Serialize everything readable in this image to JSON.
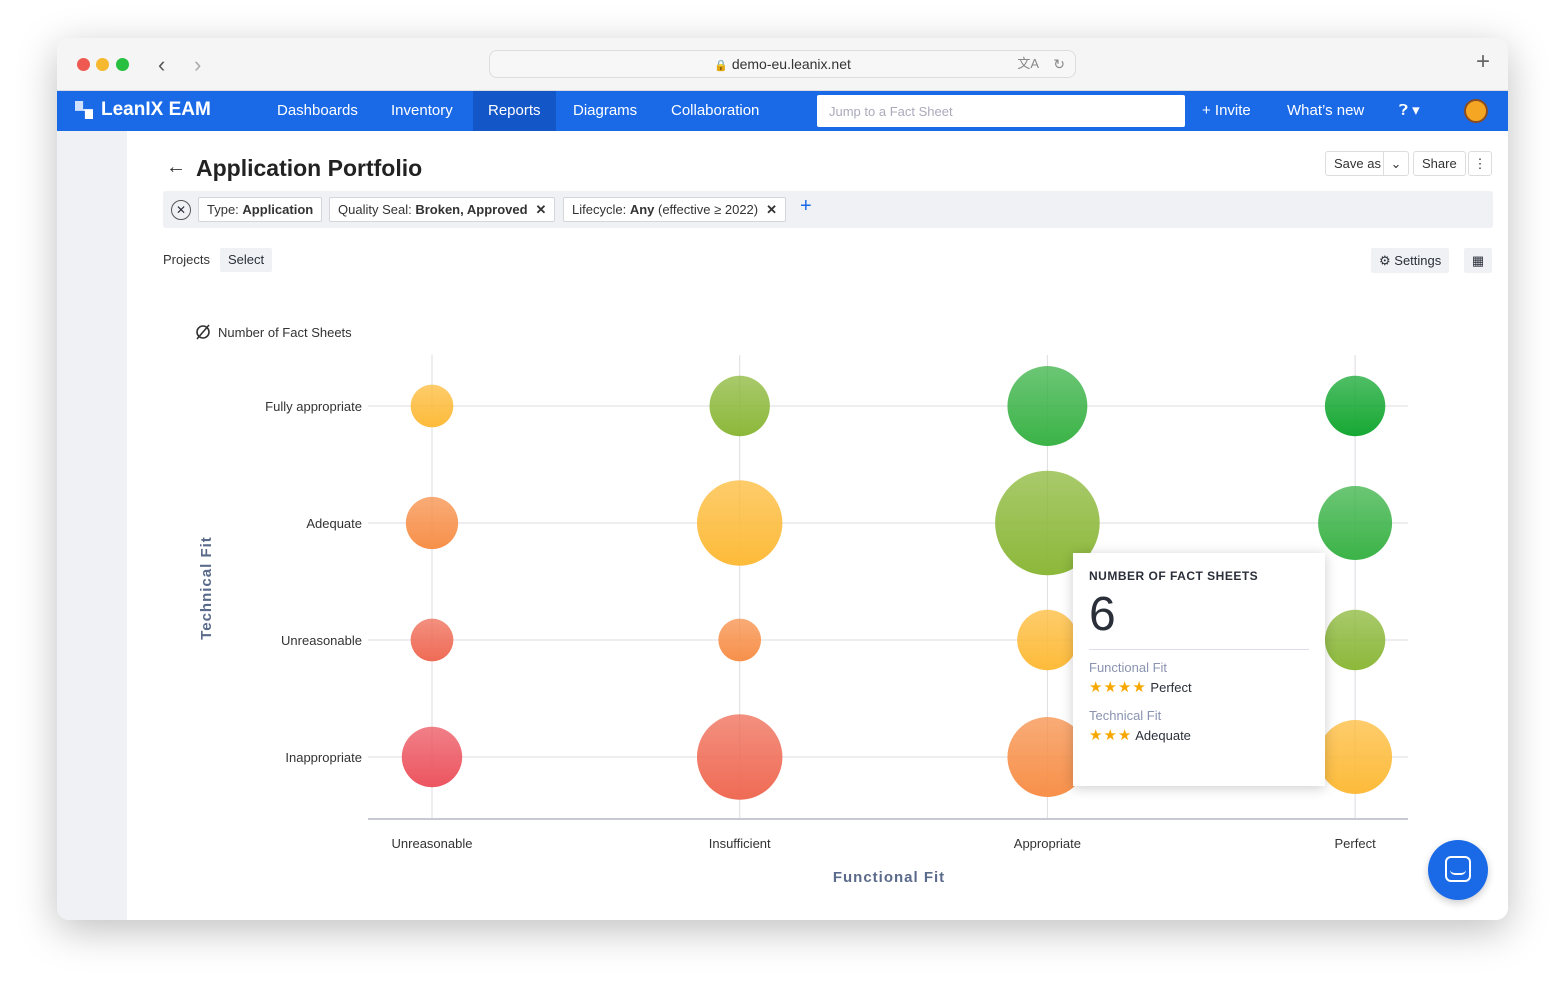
{
  "browser": {
    "url": "demo-eu.leanix.net"
  },
  "nav": {
    "brand": "LeanIX EAM",
    "items": [
      "Dashboards",
      "Inventory",
      "Reports",
      "Diagrams",
      "Collaboration"
    ],
    "active": "Reports",
    "search_placeholder": "Jump to a Fact Sheet",
    "invite": "+ Invite",
    "whats_new": "What’s new"
  },
  "page": {
    "title": "Application Portfolio",
    "save_as": "Save as",
    "share": "Share"
  },
  "filters": [
    {
      "label": "Type: ",
      "value": "Application",
      "removable": false
    },
    {
      "label": "Quality Seal: ",
      "value": "Broken, Approved",
      "removable": true
    },
    {
      "label": "Lifecycle: ",
      "value": "Any",
      "extra": " (effective ≥ 2022)",
      "removable": true
    }
  ],
  "toolbar": {
    "projects": "Projects",
    "select": "Select",
    "settings": "Settings"
  },
  "chart_data": {
    "type": "scatter",
    "size_label": "Number of Fact Sheets",
    "xlabel": "Functional Fit",
    "ylabel": "Technical Fit",
    "x_categories": [
      "Unreasonable",
      "Insufficient",
      "Appropriate",
      "Perfect"
    ],
    "y_categories": [
      "Inappropriate",
      "Unreasonable",
      "Adequate",
      "Fully appropriate"
    ],
    "points": [
      {
        "x": "Unreasonable",
        "y": "Fully appropriate",
        "size": 2,
        "color": "#fdbb3a"
      },
      {
        "x": "Insufficient",
        "y": "Fully appropriate",
        "size": 4,
        "color": "#8cb83a"
      },
      {
        "x": "Appropriate",
        "y": "Fully appropriate",
        "size": 7,
        "color": "#3bb347"
      },
      {
        "x": "Perfect",
        "y": "Fully appropriate",
        "size": 4,
        "color": "#16a833"
      },
      {
        "x": "Unreasonable",
        "y": "Adequate",
        "size": 3,
        "color": "#f7904a"
      },
      {
        "x": "Insufficient",
        "y": "Adequate",
        "size": 8,
        "color": "#fdbb3a"
      },
      {
        "x": "Appropriate",
        "y": "Adequate",
        "size": 12,
        "color": "#8cb83a"
      },
      {
        "x": "Perfect",
        "y": "Adequate",
        "size": 6,
        "color": "#3bb347"
      },
      {
        "x": "Unreasonable",
        "y": "Unreasonable",
        "size": 2,
        "color": "#ef6b55"
      },
      {
        "x": "Insufficient",
        "y": "Unreasonable",
        "size": 2,
        "color": "#f7904a"
      },
      {
        "x": "Appropriate",
        "y": "Unreasonable",
        "size": 4,
        "color": "#fdbb3a"
      },
      {
        "x": "Perfect",
        "y": "Unreasonable",
        "size": 4,
        "color": "#8cb83a"
      },
      {
        "x": "Unreasonable",
        "y": "Inappropriate",
        "size": 4,
        "color": "#ec5560"
      },
      {
        "x": "Insufficient",
        "y": "Inappropriate",
        "size": 8,
        "color": "#ef6b55"
      },
      {
        "x": "Appropriate",
        "y": "Inappropriate",
        "size": 7,
        "color": "#f7904a"
      },
      {
        "x": "Perfect",
        "y": "Inappropriate",
        "size": 6,
        "color": "#fdbb3a"
      }
    ]
  },
  "tooltip": {
    "heading": "NUMBER OF FACT SHEETS",
    "value": "6",
    "functional_label": "Functional Fit",
    "functional_value": "Perfect",
    "functional_stars": 4,
    "technical_label": "Technical Fit",
    "technical_value": "Adequate",
    "technical_stars": 3
  }
}
